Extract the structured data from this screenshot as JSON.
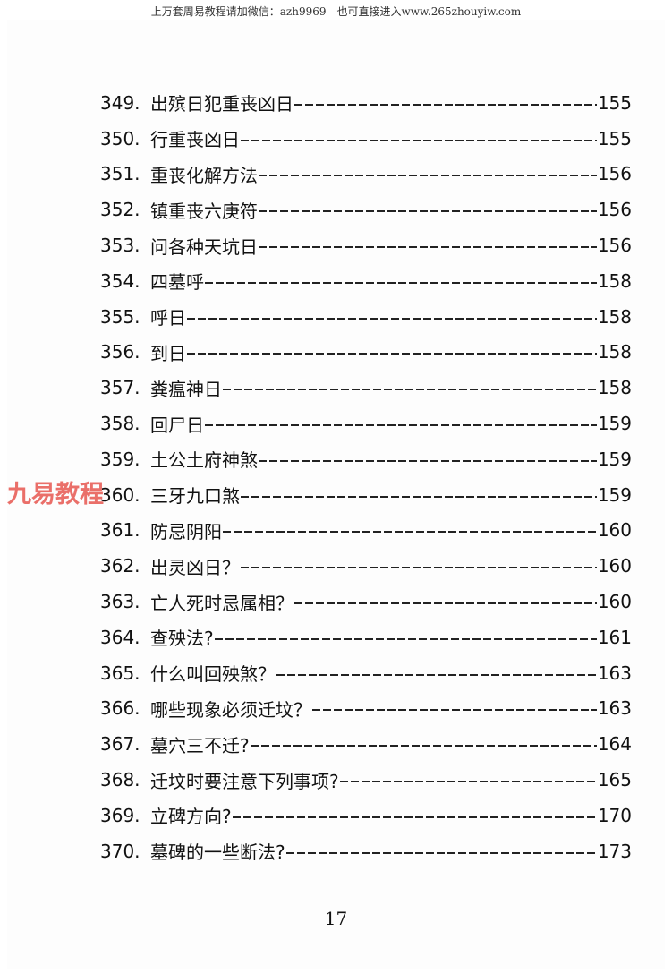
{
  "banner": "上万套周易教程请加微信：azh9969　也可直接进入www.265zhouyiw.com",
  "watermark": "九易教程",
  "entries": [
    {
      "num": "349.",
      "title": "出殡日犯重丧凶日",
      "page": "155"
    },
    {
      "num": "350.",
      "title": "行重丧凶日",
      "page": "155"
    },
    {
      "num": "351.",
      "title": "重丧化解方法",
      "page": "156"
    },
    {
      "num": "352.",
      "title": "镇重丧六庚符",
      "page": "156"
    },
    {
      "num": "353.",
      "title": "问各种天坑日",
      "page": "156"
    },
    {
      "num": "354.",
      "title": "四墓呼",
      "page": "158"
    },
    {
      "num": "355.",
      "title": "呼日",
      "page": "158"
    },
    {
      "num": "356.",
      "title": "到日",
      "page": "158"
    },
    {
      "num": "357.",
      "title": "粪瘟神日",
      "page": "158"
    },
    {
      "num": "358.",
      "title": "回尸日",
      "page": "159"
    },
    {
      "num": "359.",
      "title": "土公土府神煞",
      "page": "159"
    },
    {
      "num": "360.",
      "title": "三牙九口煞",
      "page": "159"
    },
    {
      "num": "361.",
      "title": "防忌阴阳",
      "page": "160"
    },
    {
      "num": "362.",
      "title": "出灵凶日？",
      "page": "160"
    },
    {
      "num": "363.",
      "title": "亡人死时忌属相？",
      "page": "160"
    },
    {
      "num": "364.",
      "title": "查殃法?",
      "page": "161"
    },
    {
      "num": "365.",
      "title": "什么叫回殃煞？",
      "page": "163"
    },
    {
      "num": "366.",
      "title": "哪些现象必须迁坟？",
      "page": "163"
    },
    {
      "num": "367.",
      "title": "墓穴三不迁?",
      "page": "164"
    },
    {
      "num": "368.",
      "title": "迁坟时要注意下列事项?",
      "page": "165"
    },
    {
      "num": "369.",
      "title": "立碑方向?",
      "page": "170"
    },
    {
      "num": "370.",
      "title": "墓碑的一些断法?",
      "page": "173"
    }
  ],
  "page_number": "17"
}
